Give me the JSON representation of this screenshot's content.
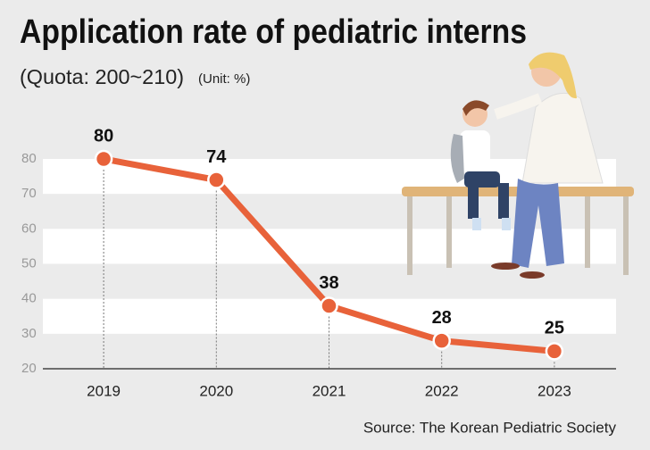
{
  "chart_data": {
    "type": "line",
    "title": "Application rate of pediatric interns",
    "subtitle": "(Quota: 200~210)",
    "unit": "(Unit: %)",
    "source": "Source: The Korean Pediatric Society",
    "categories": [
      "2019",
      "2020",
      "2021",
      "2022",
      "2023"
    ],
    "values": [
      80,
      74,
      38,
      28,
      25
    ],
    "color": "#e8623a",
    "ylim": [
      20,
      80
    ],
    "yticks": [
      20,
      30,
      40,
      50,
      60,
      70,
      80
    ],
    "grid": true
  }
}
